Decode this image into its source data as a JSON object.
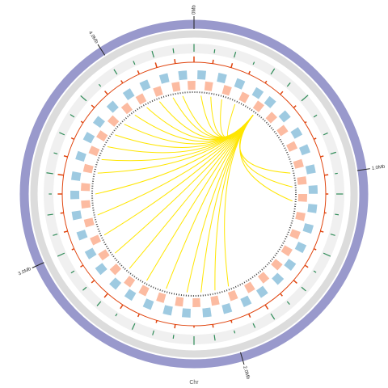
{
  "chart_data": {
    "type": "circos",
    "xlabel": "Chr",
    "xlim": [
      0,
      4.4
    ],
    "xticks": [
      {
        "value": 0,
        "label": "0Mb"
      },
      {
        "value": 1,
        "label": "1.0Mb"
      },
      {
        "value": 2,
        "label": "2.0Mb"
      },
      {
        "value": 3,
        "label": "3.0Mb"
      },
      {
        "value": 4,
        "label": "4.0Mb"
      }
    ],
    "x": [
      0.0,
      0.1,
      0.2,
      0.3,
      0.4,
      0.5,
      0.6,
      0.7,
      0.8,
      0.9,
      1.0,
      1.1,
      1.2,
      1.3,
      1.4,
      1.5,
      1.6,
      1.7,
      1.8,
      1.9,
      2.0,
      2.1,
      2.2,
      2.3,
      2.4,
      2.5,
      2.6,
      2.7,
      2.8,
      2.9,
      3.0,
      3.1,
      3.2,
      3.3,
      3.4,
      3.5,
      3.6,
      3.7,
      3.8,
      3.9,
      4.0,
      4.1,
      4.2,
      4.3
    ],
    "gc": {
      "color": "#2e8b57",
      "ylim": [
        0,
        1
      ],
      "values": [
        0.8,
        0.4,
        0.6,
        0.3,
        0.7,
        0.5,
        0.9,
        0.4,
        0.5,
        0.6,
        0.3,
        0.7,
        0.4,
        0.5,
        0.8,
        0.3,
        0.6,
        0.4,
        0.7,
        0.5,
        0.3,
        0.6,
        0.9,
        0.4,
        0.5,
        0.7,
        0.3,
        0.6,
        0.5,
        0.4,
        0.8,
        0.5,
        0.6,
        0.3,
        0.7,
        0.4,
        0.6,
        0.5,
        0.8,
        0.3,
        0.6,
        0.4,
        0.7,
        0.5
      ]
    },
    "skew": {
      "color": "#e0440e",
      "ylim": [
        0,
        1
      ],
      "values": [
        0.9,
        0.6,
        0.7,
        0.5,
        0.4,
        0.6,
        0.5,
        0.3,
        0.4,
        0.5,
        0.6,
        0.4,
        0.3,
        0.5,
        0.4,
        0.6,
        0.7,
        0.5,
        0.8,
        0.6,
        0.4,
        0.5,
        0.3,
        0.6,
        0.4,
        0.5,
        0.7,
        0.8,
        0.6,
        0.5,
        0.4,
        0.6,
        0.5,
        0.7,
        0.9,
        0.6,
        0.5,
        0.4,
        0.6,
        0.7,
        0.5,
        0.6,
        0.8,
        0.7
      ]
    },
    "forward": {
      "color": "#9ecae1",
      "starts": [
        0.02,
        0.14,
        0.25,
        0.37,
        0.46,
        0.58,
        0.7,
        0.81,
        0.93,
        1.05,
        1.16,
        1.28,
        1.4,
        1.52,
        1.63,
        1.75,
        1.86,
        1.98,
        2.1,
        2.22,
        2.33,
        2.45,
        2.57,
        2.68,
        2.8,
        2.91,
        3.03,
        3.15,
        3.27,
        3.38,
        3.5,
        3.62,
        3.73,
        3.85,
        3.97,
        4.08,
        4.2,
        4.31
      ]
    },
    "reverse": {
      "color": "#fcbba1",
      "starts": [
        0.07,
        0.19,
        0.31,
        0.42,
        0.53,
        0.64,
        0.76,
        0.88,
        0.99,
        1.1,
        1.22,
        1.34,
        1.46,
        1.57,
        1.69,
        1.8,
        1.92,
        2.04,
        2.16,
        2.27,
        2.39,
        2.51,
        2.62,
        2.74,
        2.86,
        2.97,
        3.09,
        3.21,
        3.32,
        3.44,
        3.56,
        3.67,
        3.79,
        3.91,
        4.02,
        4.14,
        4.26,
        4.36
      ]
    },
    "links": {
      "color": "#ffe600",
      "from": [
        0.45,
        0.45,
        0.45,
        0.45,
        0.45,
        0.45,
        0.45,
        0.45,
        0.45,
        0.45,
        0.45,
        0.45,
        0.45,
        0.45,
        0.45,
        0.45,
        0.45,
        0.45,
        0.45,
        0.45,
        0.45,
        0.45,
        0.45,
        0.45,
        0.45,
        0.45,
        0.45,
        0.45
      ],
      "to": [
        0.05,
        0.12,
        0.2,
        0.95,
        1.05,
        1.15,
        1.95,
        2.05,
        2.15,
        2.25,
        2.4,
        2.55,
        2.7,
        2.85,
        3.0,
        3.15,
        3.3,
        3.45,
        3.55,
        3.65,
        3.75,
        3.85,
        3.95,
        4.05,
        4.15,
        4.25,
        4.32,
        0.3
      ]
    }
  }
}
